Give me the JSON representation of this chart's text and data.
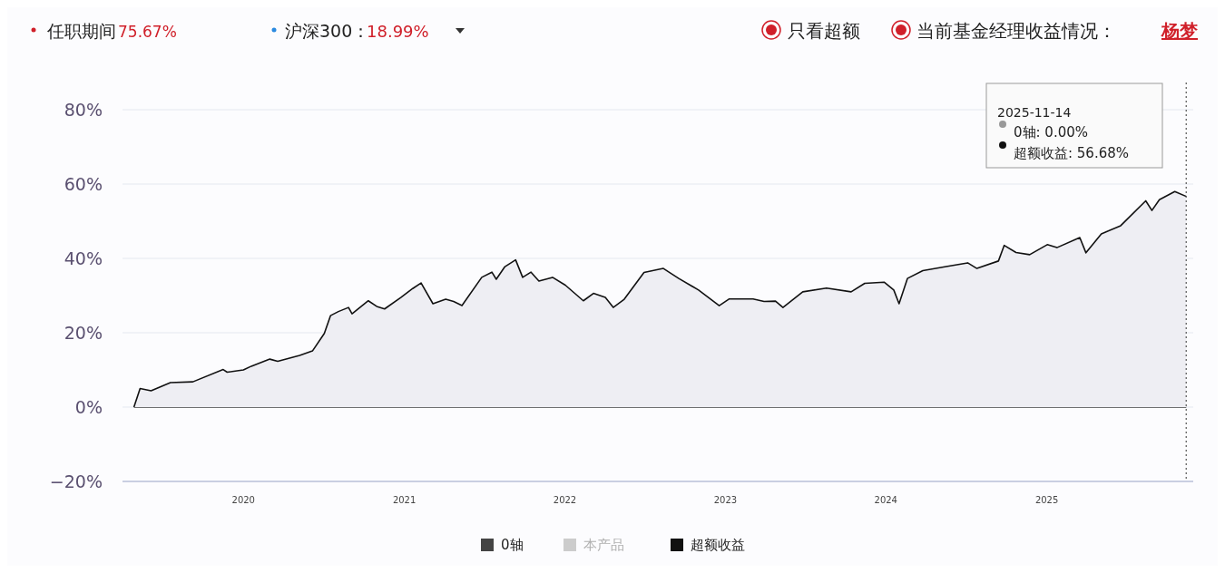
{
  "chart_data": {
    "type": "line",
    "annotations": [
      "任职期间",
      "75.67%",
      "沪深300：",
      "18.99%",
      "只看超额",
      "当前基金经理收益情况：",
      "杨梦",
      "2025-11-14",
      "0轴: 0.00%",
      "超额收益: 56.68%"
    ],
    "series": [
      {
        "name": "0轴",
        "color": "#444444",
        "x": [
          "2019-04-27",
          "2025-11-14"
        ],
        "values": [
          0,
          0
        ]
      },
      {
        "name": "本产品",
        "color": "#cccccc"
      },
      {
        "name": "超额收益",
        "type": "area",
        "color": "#111111",
        "x": [
          "2019-04-27",
          "2019-05-11",
          "2019-06-05",
          "2019-07-19",
          "2019-09-08",
          "2019-11-16",
          "2019-11-25",
          "2020-01-01",
          "2020-01-19",
          "2020-03-01",
          "2020-03-19",
          "2020-05-08",
          "2020-06-06",
          "2020-07-03",
          "2020-07-17",
          "2020-08-04",
          "2020-08-27",
          "2020-09-04",
          "2020-10-11",
          "2020-10-30",
          "2020-11-17",
          "2020-12-24",
          "2021-01-20",
          "2021-02-08",
          "2021-03-07",
          "2021-04-05",
          "2021-04-23",
          "2021-05-12",
          "2021-06-26",
          "2021-07-19",
          "2021-07-29",
          "2021-08-17",
          "2021-09-11",
          "2021-09-27",
          "2021-10-16",
          "2021-11-03",
          "2021-12-04",
          "2022-01-02",
          "2022-02-12",
          "2022-03-07",
          "2022-04-03",
          "2022-04-21",
          "2022-05-16",
          "2022-06-30",
          "2022-08-13",
          "2022-09-17",
          "2022-11-01",
          "2022-12-18",
          "2023-01-10",
          "2023-03-05",
          "2023-03-30",
          "2023-04-25",
          "2023-05-12",
          "2023-06-26",
          "2023-08-19",
          "2023-10-14",
          "2023-11-14",
          "2023-12-28",
          "2024-01-19",
          "2024-01-31",
          "2024-02-19",
          "2024-03-25",
          "2024-05-17",
          "2024-07-05",
          "2024-07-26",
          "2024-09-13",
          "2024-09-26",
          "2024-10-23",
          "2024-11-23",
          "2025-01-02",
          "2025-01-24",
          "2025-03-17",
          "2025-03-31",
          "2025-05-05",
          "2025-06-18",
          "2025-08-14",
          "2025-08-28",
          "2025-09-14",
          "2025-10-19",
          "2025-11-14"
        ],
        "values": [
          0,
          5.0,
          4.4,
          6.6,
          6.8,
          10.1,
          9.4,
          10.0,
          11.0,
          12.9,
          12.3,
          13.9,
          15.1,
          19.8,
          24.6,
          25.7,
          26.8,
          25.1,
          28.6,
          27.1,
          26.4,
          29.5,
          31.9,
          33.4,
          27.8,
          29.0,
          28.4,
          27.3,
          34.9,
          36.3,
          34.4,
          37.7,
          39.6,
          34.9,
          36.3,
          33.9,
          34.9,
          32.8,
          28.6,
          30.6,
          29.5,
          26.8,
          29.0,
          36.2,
          37.3,
          34.6,
          31.5,
          27.3,
          29.1,
          29.1,
          28.4,
          28.5,
          26.8,
          31.0,
          32.0,
          31.0,
          33.3,
          33.6,
          31.5,
          27.8,
          34.6,
          36.7,
          37.8,
          38.8,
          37.3,
          39.3,
          43.5,
          41.6,
          41.0,
          43.7,
          42.9,
          45.6,
          41.5,
          46.6,
          48.8,
          55.5,
          52.9,
          55.8,
          58.0,
          56.68
        ]
      }
    ],
    "xlim": [
      "2019-04-01",
      "2025-11-30"
    ],
    "xticks": [
      "2020",
      "2021",
      "2022",
      "2023",
      "2024",
      "2025"
    ],
    "ylim": [
      -20,
      80
    ],
    "yticks": [
      {
        "value": -20,
        "label": "−20%"
      },
      {
        "value": 0,
        "label": "0%"
      },
      {
        "value": 20,
        "label": "20%"
      },
      {
        "value": 40,
        "label": "40%"
      },
      {
        "value": 60,
        "label": "60%"
      },
      {
        "value": 80,
        "label": "80%"
      }
    ],
    "ref_lines": [
      {
        "axis": "x",
        "value": "2025-11-14",
        "label": null,
        "color": "#555555",
        "line_style": "dotted"
      }
    ],
    "grid": "y",
    "legend": "bottom",
    "line_style": "solid",
    "marker": "none"
  }
}
